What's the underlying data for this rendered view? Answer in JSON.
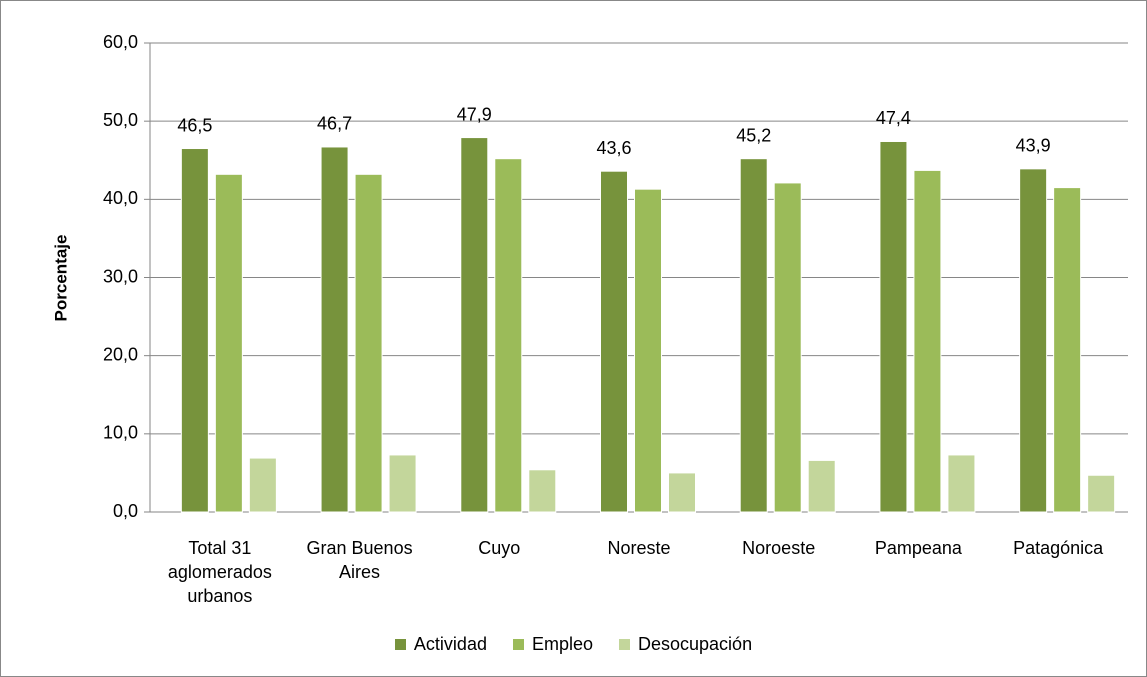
{
  "chart_data": {
    "type": "bar",
    "y_label": "Porcentaje",
    "categories": [
      "Total 31 aglomerados urbanos",
      "Gran Buenos Aires",
      "Cuyo",
      "Noreste",
      "Noroeste",
      "Pampeana",
      "Patagónica"
    ],
    "series": [
      {
        "name": "Actividad",
        "color": "#77933c",
        "values": [
          46.5,
          46.7,
          47.9,
          43.6,
          45.2,
          47.4,
          43.9
        ],
        "value_labels": [
          "46,5",
          "46,7",
          "47,9",
          "43,6",
          "45,2",
          "47,4",
          "43,9"
        ]
      },
      {
        "name": "Empleo",
        "color": "#9bbb59",
        "values": [
          43.2,
          43.2,
          45.2,
          41.3,
          42.1,
          43.7,
          41.5
        ]
      },
      {
        "name": "Desocupación",
        "color": "#c3d69b",
        "values": [
          6.9,
          7.3,
          5.4,
          5.0,
          6.6,
          7.3,
          4.7
        ]
      }
    ],
    "ylim": [
      0,
      60
    ],
    "yticks": [
      {
        "value": 0,
        "label": "0,0"
      },
      {
        "value": 10,
        "label": "10,0"
      },
      {
        "value": 20,
        "label": "20,0"
      },
      {
        "value": 30,
        "label": "30,0"
      },
      {
        "value": 40,
        "label": "40,0"
      },
      {
        "value": 50,
        "label": "50,0"
      },
      {
        "value": 60,
        "label": "60,0"
      }
    ],
    "grid": true
  }
}
